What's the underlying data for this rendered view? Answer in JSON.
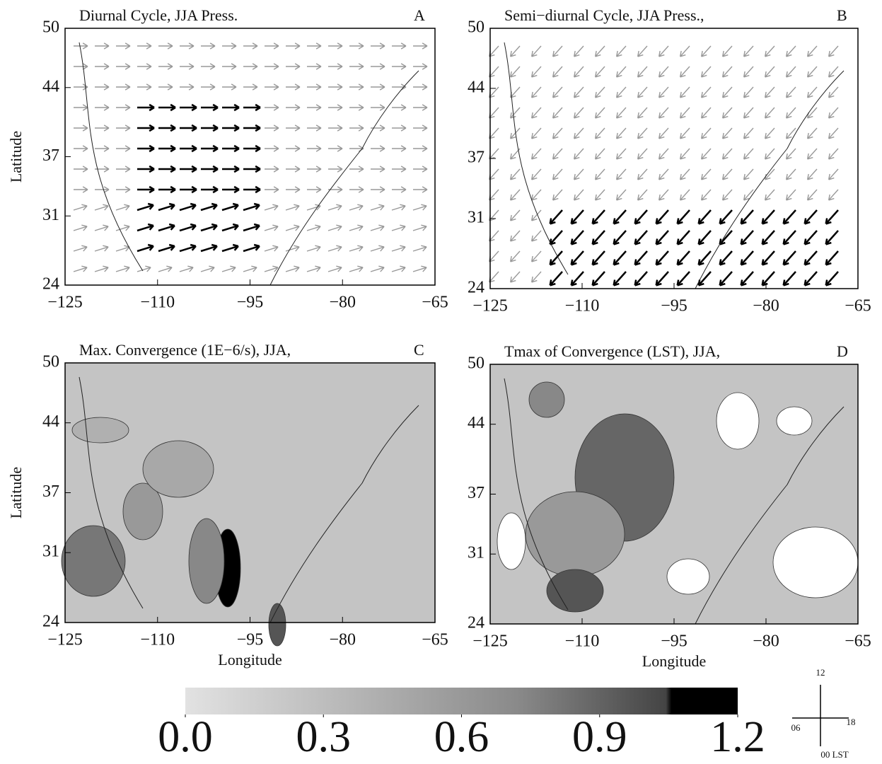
{
  "chart_data": [
    {
      "type": "vector",
      "title": "Diurnal Cycle, JJA Press.",
      "label": "A",
      "ylabel": "Latitude",
      "xlim": [
        -125,
        -65
      ],
      "ylim": [
        24,
        50
      ],
      "xticks": [
        {
          "value": -125,
          "label": "−125"
        },
        {
          "value": -110,
          "label": "−110"
        },
        {
          "value": -95,
          "label": "−95"
        },
        {
          "value": -80,
          "label": "−80"
        },
        {
          "value": -65,
          "label": "−65"
        }
      ],
      "yticks": [
        24,
        31,
        37,
        44,
        50
      ]
    },
    {
      "type": "vector",
      "title": "Semi−diurnal Cycle, JJA Press.,",
      "label": "B",
      "xlim": [
        -125,
        -65
      ],
      "ylim": [
        24,
        50
      ],
      "xticks": [
        {
          "value": -125,
          "label": "−125"
        },
        {
          "value": -110,
          "label": "−110"
        },
        {
          "value": -95,
          "label": "−95"
        },
        {
          "value": -80,
          "label": "−80"
        },
        {
          "value": -65,
          "label": "−65"
        }
      ],
      "yticks": [
        24,
        31,
        37,
        44,
        50
      ]
    },
    {
      "type": "contour",
      "title": "Max. Convergence (1E−6/s), JJA,",
      "label": "C",
      "ylabel": "Latitude",
      "xlabel": "Longitude",
      "xlim": [
        -125,
        -65
      ],
      "ylim": [
        24,
        50
      ],
      "xticks": [
        {
          "value": -125,
          "label": "−125"
        },
        {
          "value": -110,
          "label": "−110"
        },
        {
          "value": -95,
          "label": "−95"
        },
        {
          "value": -80,
          "label": "−80"
        },
        {
          "value": -65,
          "label": "−65"
        }
      ],
      "yticks": [
        24,
        31,
        37,
        44,
        50
      ]
    },
    {
      "type": "contour",
      "title": "Tmax of Convergence (LST), JJA,",
      "label": "D",
      "xlabel": "Longitude",
      "xlim": [
        -125,
        -65
      ],
      "ylim": [
        24,
        50
      ],
      "xticks": [
        {
          "value": -125,
          "label": "−125"
        },
        {
          "value": -110,
          "label": "−110"
        },
        {
          "value": -95,
          "label": "−95"
        },
        {
          "value": -80,
          "label": "−80"
        },
        {
          "value": -65,
          "label": "−65"
        }
      ],
      "yticks": [
        24,
        31,
        37,
        44,
        50
      ]
    }
  ],
  "colorbar": {
    "lim": [
      0,
      1.2
    ],
    "ticks": [
      {
        "value": 0,
        "label": "0.0"
      },
      {
        "value": 0.3,
        "label": "0.3"
      },
      {
        "value": 0.6,
        "label": "0.6"
      },
      {
        "value": 0.9,
        "label": "0.9"
      },
      {
        "value": 1.2,
        "label": "1.2"
      }
    ]
  },
  "direction_key": {
    "north": "12",
    "west": "06",
    "east": "18",
    "south": "00 LST"
  }
}
